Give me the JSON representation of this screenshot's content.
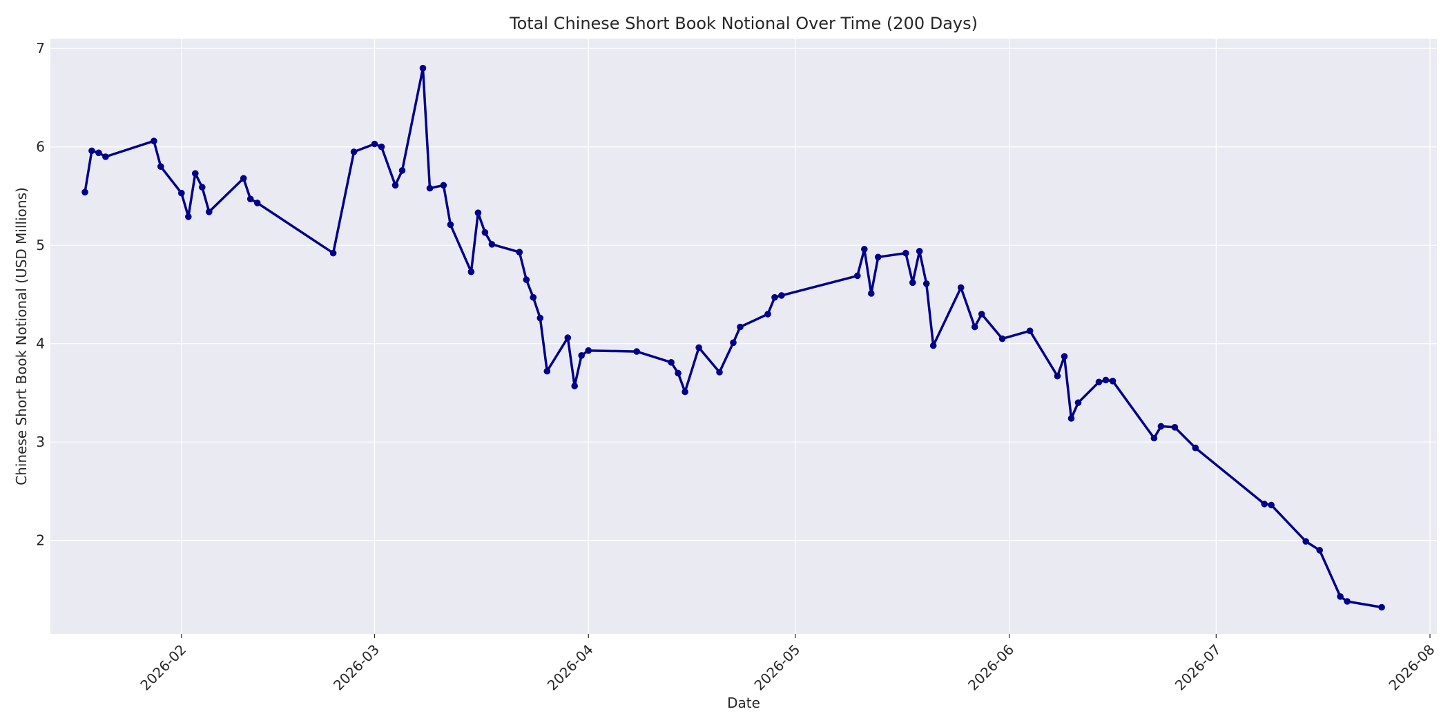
{
  "chart_data": {
    "type": "line",
    "title": "Total Chinese Short Book Notional Over Time (200 Days)",
    "xlabel": "Date",
    "ylabel": "Chinese Short Book Notional (USD Millions)",
    "x_axis_type": "date",
    "xlim": [
      "2026-01-13",
      "2026-08-02"
    ],
    "ylim": [
      1.05,
      7.1
    ],
    "x_ticks": [
      "2026-02-01",
      "2026-03-01",
      "2026-04-01",
      "2026-05-01",
      "2026-06-01",
      "2026-07-01",
      "2026-08-01"
    ],
    "x_tick_labels": [
      "2026-02",
      "2026-03",
      "2026-04",
      "2026-05",
      "2026-06",
      "2026-07",
      "2026-08"
    ],
    "y_ticks": [
      2,
      3,
      4,
      5,
      6,
      7
    ],
    "y_tick_labels": [
      "2",
      "3",
      "4",
      "5",
      "6",
      "7"
    ],
    "grid": true,
    "colors": {
      "line": "#00008b",
      "plot_background": "#eaeaf2",
      "grid": "#ffffff"
    },
    "series": [
      {
        "points": [
          [
            "2026-01-18",
            5.54
          ],
          [
            "2026-01-19",
            5.96
          ],
          [
            "2026-01-20",
            5.94
          ],
          [
            "2026-01-21",
            5.9
          ],
          [
            "2026-01-28",
            6.06
          ],
          [
            "2026-01-29",
            5.8
          ],
          [
            "2026-02-01",
            5.53
          ],
          [
            "2026-02-02",
            5.29
          ],
          [
            "2026-02-03",
            5.73
          ],
          [
            "2026-02-04",
            5.59
          ],
          [
            "2026-02-05",
            5.34
          ],
          [
            "2026-02-10",
            5.68
          ],
          [
            "2026-02-11",
            5.47
          ],
          [
            "2026-02-12",
            5.43
          ],
          [
            "2026-02-23",
            4.92
          ],
          [
            "2026-02-26",
            5.95
          ],
          [
            "2026-03-01",
            6.03
          ],
          [
            "2026-03-02",
            6.0
          ],
          [
            "2026-03-04",
            5.61
          ],
          [
            "2026-03-05",
            5.76
          ],
          [
            "2026-03-08",
            6.8
          ],
          [
            "2026-03-09",
            5.58
          ],
          [
            "2026-03-11",
            5.61
          ],
          [
            "2026-03-12",
            5.21
          ],
          [
            "2026-03-15",
            4.73
          ],
          [
            "2026-03-16",
            5.33
          ],
          [
            "2026-03-17",
            5.13
          ],
          [
            "2026-03-18",
            5.01
          ],
          [
            "2026-03-22",
            4.93
          ],
          [
            "2026-03-23",
            4.65
          ],
          [
            "2026-03-24",
            4.47
          ],
          [
            "2026-03-25",
            4.26
          ],
          [
            "2026-03-26",
            3.72
          ],
          [
            "2026-03-29",
            4.06
          ],
          [
            "2026-03-30",
            3.57
          ],
          [
            "2026-03-31",
            3.88
          ],
          [
            "2026-04-01",
            3.93
          ],
          [
            "2026-04-08",
            3.92
          ],
          [
            "2026-04-13",
            3.81
          ],
          [
            "2026-04-14",
            3.7
          ],
          [
            "2026-04-15",
            3.51
          ],
          [
            "2026-04-17",
            3.96
          ],
          [
            "2026-04-20",
            3.71
          ],
          [
            "2026-04-22",
            4.01
          ],
          [
            "2026-04-23",
            4.17
          ],
          [
            "2026-04-27",
            4.3
          ],
          [
            "2026-04-28",
            4.47
          ],
          [
            "2026-04-29",
            4.49
          ],
          [
            "2026-05-10",
            4.69
          ],
          [
            "2026-05-11",
            4.96
          ],
          [
            "2026-05-12",
            4.51
          ],
          [
            "2026-05-13",
            4.88
          ],
          [
            "2026-05-17",
            4.92
          ],
          [
            "2026-05-18",
            4.62
          ],
          [
            "2026-05-19",
            4.94
          ],
          [
            "2026-05-20",
            4.61
          ],
          [
            "2026-05-21",
            3.98
          ],
          [
            "2026-05-25",
            4.57
          ],
          [
            "2026-05-27",
            4.17
          ],
          [
            "2026-05-28",
            4.3
          ],
          [
            "2026-05-31",
            4.05
          ],
          [
            "2026-06-04",
            4.13
          ],
          [
            "2026-06-08",
            3.67
          ],
          [
            "2026-06-09",
            3.87
          ],
          [
            "2026-06-10",
            3.24
          ],
          [
            "2026-06-11",
            3.4
          ],
          [
            "2026-06-14",
            3.61
          ],
          [
            "2026-06-15",
            3.63
          ],
          [
            "2026-06-16",
            3.62
          ],
          [
            "2026-06-22",
            3.04
          ],
          [
            "2026-06-23",
            3.16
          ],
          [
            "2026-06-25",
            3.15
          ],
          [
            "2026-06-28",
            2.94
          ],
          [
            "2026-07-08",
            2.37
          ],
          [
            "2026-07-09",
            2.36
          ],
          [
            "2026-07-14",
            1.99
          ],
          [
            "2026-07-16",
            1.9
          ],
          [
            "2026-07-19",
            1.43
          ],
          [
            "2026-07-20",
            1.38
          ],
          [
            "2026-07-25",
            1.32
          ]
        ]
      }
    ]
  }
}
